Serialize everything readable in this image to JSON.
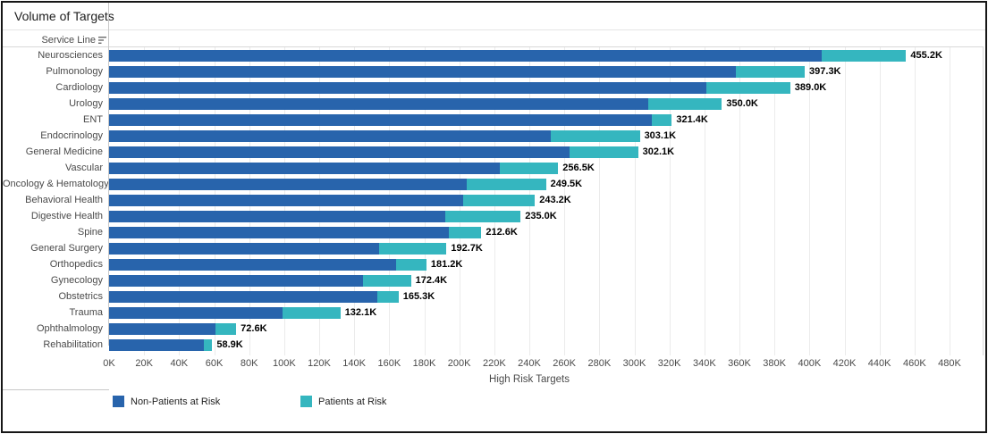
{
  "widget": {
    "title": "Volume of Targets",
    "row_header_label": "Service Line"
  },
  "legend": [
    {
      "label": "Non-Patients at Risk",
      "color": "#2864AC"
    },
    {
      "label": "Patients at Risk",
      "color": "#35B6BF"
    }
  ],
  "colors": {
    "non_patients": "#2864AC",
    "patients": "#35B6BF"
  },
  "chart_data": {
    "type": "bar",
    "orientation": "horizontal",
    "stacked": true,
    "title": "Volume of Targets",
    "xlabel": "High Risk Targets",
    "ylabel": "Service Line",
    "grid": true,
    "legend_position": "bottom",
    "xlim_k": [
      0,
      480
    ],
    "x_tick_step_k": 20,
    "x_ticks": [
      "0K",
      "20K",
      "40K",
      "60K",
      "80K",
      "100K",
      "120K",
      "140K",
      "160K",
      "180K",
      "200K",
      "220K",
      "240K",
      "260K",
      "280K",
      "300K",
      "320K",
      "340K",
      "360K",
      "380K",
      "400K",
      "420K",
      "440K",
      "460K",
      "480K"
    ],
    "categories": [
      "Neurosciences",
      "Pulmonology",
      "Cardiology",
      "Urology",
      "ENT",
      "Endocrinology",
      "General Medicine",
      "Vascular",
      "Oncology & Hematology",
      "Behavioral Health",
      "Digestive Health",
      "Spine",
      "General Surgery",
      "Orthopedics",
      "Gynecology",
      "Obstetrics",
      "Trauma",
      "Ophthalmology",
      "Rehabilitation"
    ],
    "series": [
      {
        "name": "Non-Patients at Risk",
        "color": "#2864AC",
        "values_k": [
          407.0,
          358.0,
          341.0,
          308.0,
          310.0,
          252.0,
          263.0,
          223.0,
          204.0,
          202.0,
          192.0,
          194.0,
          154.0,
          164.0,
          145.0,
          153.0,
          99.0,
          61.0,
          54.0
        ]
      },
      {
        "name": "Patients at Risk",
        "color": "#35B6BF",
        "values_k": [
          48.2,
          39.3,
          48.0,
          42.0,
          11.4,
          51.1,
          39.1,
          33.5,
          45.5,
          41.2,
          43.0,
          18.6,
          38.7,
          17.2,
          27.4,
          12.3,
          33.1,
          11.6,
          4.9
        ]
      }
    ],
    "totals_k": [
      455.2,
      397.3,
      389.0,
      350.0,
      321.4,
      303.1,
      302.1,
      256.5,
      249.5,
      243.2,
      235.0,
      212.6,
      192.7,
      181.2,
      172.4,
      165.3,
      132.1,
      72.6,
      58.9
    ],
    "total_labels": [
      "455.2K",
      "397.3K",
      "389.0K",
      "350.0K",
      "321.4K",
      "303.1K",
      "302.1K",
      "256.5K",
      "249.5K",
      "243.2K",
      "235.0K",
      "212.6K",
      "192.7K",
      "181.2K",
      "172.4K",
      "165.3K",
      "132.1K",
      "72.6K",
      "58.9K"
    ]
  }
}
